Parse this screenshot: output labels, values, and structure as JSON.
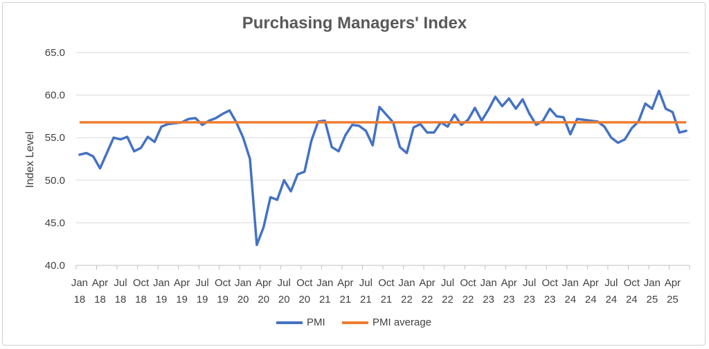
{
  "chart_data": {
    "type": "line",
    "title": "Purchasing Managers' Index",
    "ylabel": "Index Level",
    "xlabel": "",
    "ylim": [
      40.0,
      65.0
    ],
    "yticks": [
      "65.0",
      "60.0",
      "55.0",
      "50.0",
      "45.0",
      "40.0"
    ],
    "grid": true,
    "legend_position": "bottom",
    "x_tick_labels": [
      {
        "month": "Jan",
        "year": "18"
      },
      {
        "month": "Apr",
        "year": "18"
      },
      {
        "month": "Jul",
        "year": "18"
      },
      {
        "month": "Oct",
        "year": "18"
      },
      {
        "month": "Jan",
        "year": "19"
      },
      {
        "month": "Apr",
        "year": "19"
      },
      {
        "month": "Jul",
        "year": "19"
      },
      {
        "month": "Oct",
        "year": "19"
      },
      {
        "month": "Jan",
        "year": "20"
      },
      {
        "month": "Apr",
        "year": "20"
      },
      {
        "month": "Jul",
        "year": "20"
      },
      {
        "month": "Oct",
        "year": "20"
      },
      {
        "month": "Jan",
        "year": "21"
      },
      {
        "month": "Apr",
        "year": "21"
      },
      {
        "month": "Jul",
        "year": "21"
      },
      {
        "month": "Oct",
        "year": "21"
      },
      {
        "month": "Jan",
        "year": "22"
      },
      {
        "month": "Apr",
        "year": "22"
      },
      {
        "month": "Jul",
        "year": "22"
      },
      {
        "month": "Oct",
        "year": "22"
      },
      {
        "month": "Jan",
        "year": "23"
      },
      {
        "month": "Apr",
        "year": "23"
      },
      {
        "month": "Jul",
        "year": "23"
      },
      {
        "month": "Oct",
        "year": "23"
      },
      {
        "month": "Jan",
        "year": "24"
      },
      {
        "month": "Apr",
        "year": "24"
      },
      {
        "month": "Jul",
        "year": "24"
      },
      {
        "month": "Oct",
        "year": "24"
      },
      {
        "month": "Jan",
        "year": "25"
      },
      {
        "month": "Apr",
        "year": "25"
      }
    ],
    "series": [
      {
        "name": "PMI",
        "color": "#4472C4",
        "values": [
          53.0,
          53.2,
          52.8,
          51.4,
          53.2,
          55.0,
          54.8,
          55.1,
          53.4,
          53.8,
          55.1,
          54.5,
          56.3,
          56.6,
          56.7,
          56.8,
          57.2,
          57.3,
          56.5,
          57.0,
          57.3,
          57.8,
          58.2,
          56.8,
          55.0,
          52.5,
          42.4,
          44.5,
          48.0,
          47.7,
          50.0,
          48.7,
          50.7,
          51.0,
          54.6,
          56.9,
          57.0,
          53.9,
          53.4,
          55.3,
          56.5,
          56.4,
          55.8,
          54.1,
          58.6,
          57.7,
          56.8,
          53.9,
          53.2,
          56.2,
          56.6,
          55.6,
          55.6,
          56.8,
          56.3,
          57.7,
          56.5,
          57.1,
          58.5,
          57.0,
          58.3,
          59.8,
          58.7,
          59.6,
          58.4,
          59.5,
          57.8,
          56.5,
          57.0,
          58.4,
          57.5,
          57.4,
          55.4,
          57.2,
          57.1,
          57.0,
          56.9,
          56.3,
          55.0,
          54.4,
          54.8,
          56.1,
          56.9,
          59.0,
          58.4,
          60.5,
          58.4,
          58.0,
          55.6,
          55.8
        ]
      },
      {
        "name": "PMI average",
        "color": "#ED7D31",
        "values": [
          56.8
        ]
      }
    ]
  }
}
